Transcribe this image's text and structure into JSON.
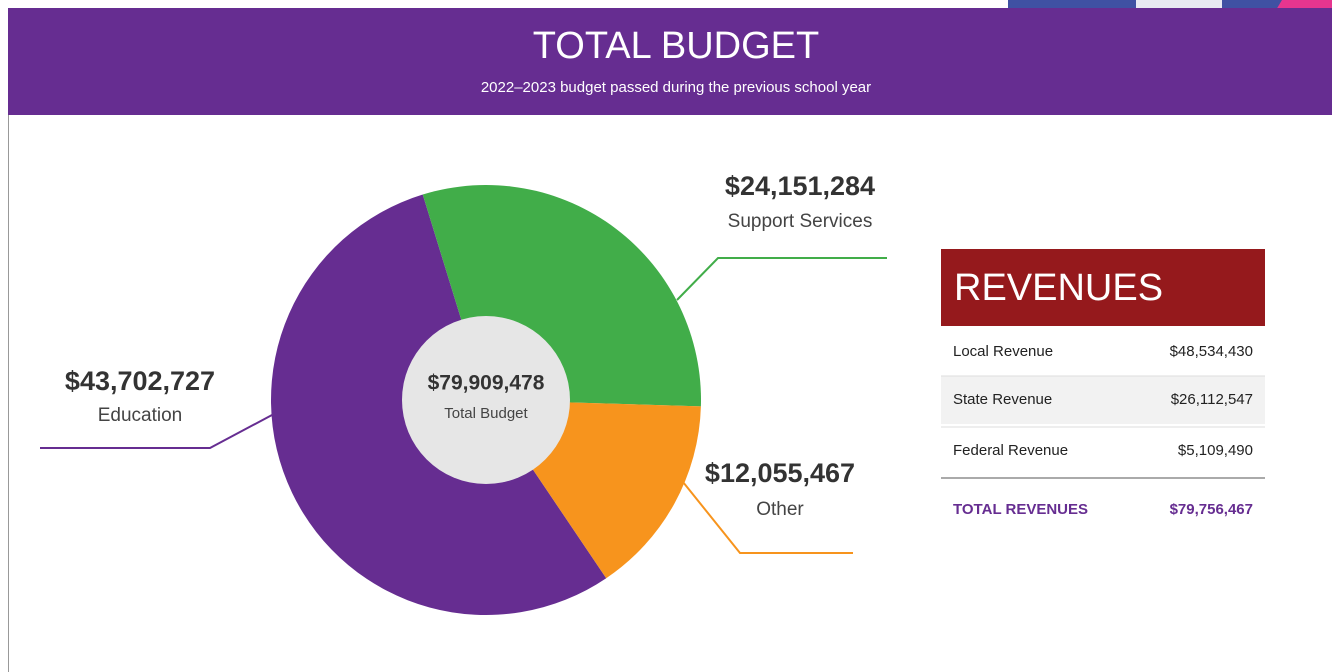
{
  "header": {
    "title": "TOTAL BUDGET",
    "subtitle": "2022–2023 budget passed during the previous school year"
  },
  "chart_data": {
    "type": "pie",
    "categories": [
      "Education",
      "Support Services",
      "Other"
    ],
    "values": [
      43702727,
      24151284,
      12055467
    ],
    "value_labels": [
      "$43,702,727",
      "$24,151,284",
      "$12,055,467"
    ],
    "colors": [
      "#662d91",
      "#41ad49",
      "#f7941d"
    ],
    "center_label": "$79,909,478",
    "center_caption": "Total Budget"
  },
  "revenues": {
    "title": "REVENUES",
    "rows": [
      [
        "Local Revenue",
        "$48,534,430"
      ],
      [
        "State Revenue",
        "$26,112,547"
      ],
      [
        "Federal  Revenue",
        "$5,109,490"
      ]
    ],
    "total": [
      "TOTAL  REVENUES",
      "$79,756,467"
    ]
  }
}
